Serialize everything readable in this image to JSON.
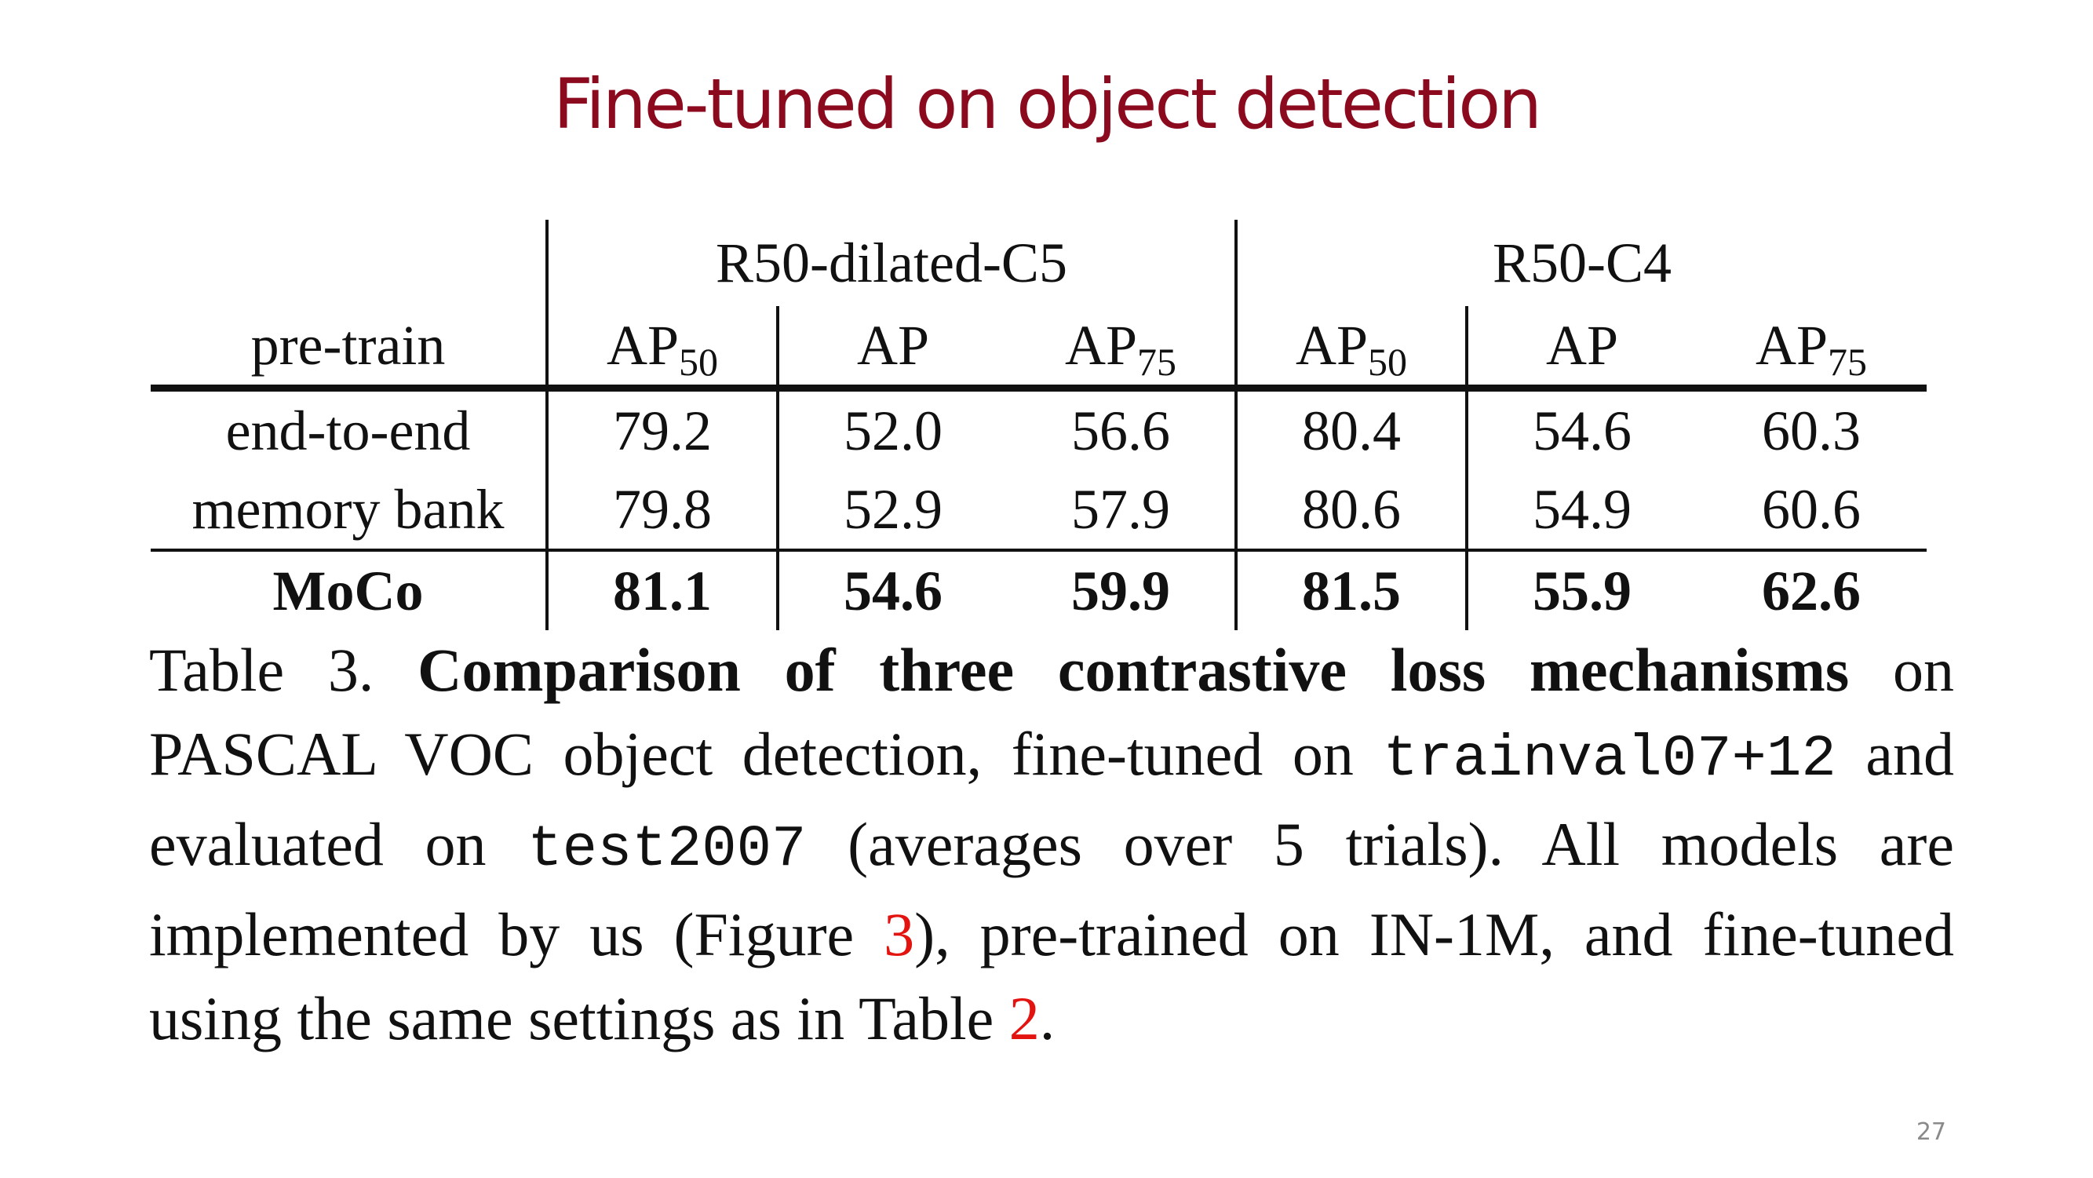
{
  "slide": {
    "title": "Fine-tuned on object detection",
    "page_number": "27"
  },
  "table": {
    "groups": [
      "R50-dilated-C5",
      "R50-C4"
    ],
    "header": {
      "first": "pre-train",
      "metrics": [
        {
          "base": "AP",
          "sub": "50"
        },
        {
          "base": "AP",
          "sub": ""
        },
        {
          "base": "AP",
          "sub": "75"
        },
        {
          "base": "AP",
          "sub": "50"
        },
        {
          "base": "AP",
          "sub": ""
        },
        {
          "base": "AP",
          "sub": "75"
        }
      ]
    },
    "rows": [
      {
        "label": "end-to-end",
        "values": [
          "79.2",
          "52.0",
          "56.6",
          "80.4",
          "54.6",
          "60.3"
        ]
      },
      {
        "label": "memory bank",
        "values": [
          "79.8",
          "52.9",
          "57.9",
          "80.6",
          "54.9",
          "60.6"
        ]
      },
      {
        "label": "MoCo",
        "values": [
          "81.1",
          "54.6",
          "59.9",
          "81.5",
          "55.9",
          "62.6"
        ]
      }
    ]
  },
  "caption": {
    "table_label": "Table 3.",
    "bold_title": "Comparison of three contrastive loss mechanisms",
    "text_1": "on PASCAL VOC object detection, fine-tuned on",
    "mono_1": "trainval07+12",
    "text_2": "and evaluated on",
    "mono_2": "test2007",
    "text_3": "(averages over 5 trials).  All models are implemented by us (Figure",
    "ref_figure": "3",
    "text_4": "), pre-trained on IN-1M, and fine-tuned using the same settings as in Table",
    "ref_table": "2",
    "text_5": "."
  },
  "colors": {
    "title": "#8b0a1e",
    "reference": "#e3130f",
    "text": "#111111",
    "page_number": "#8a8a8a"
  }
}
